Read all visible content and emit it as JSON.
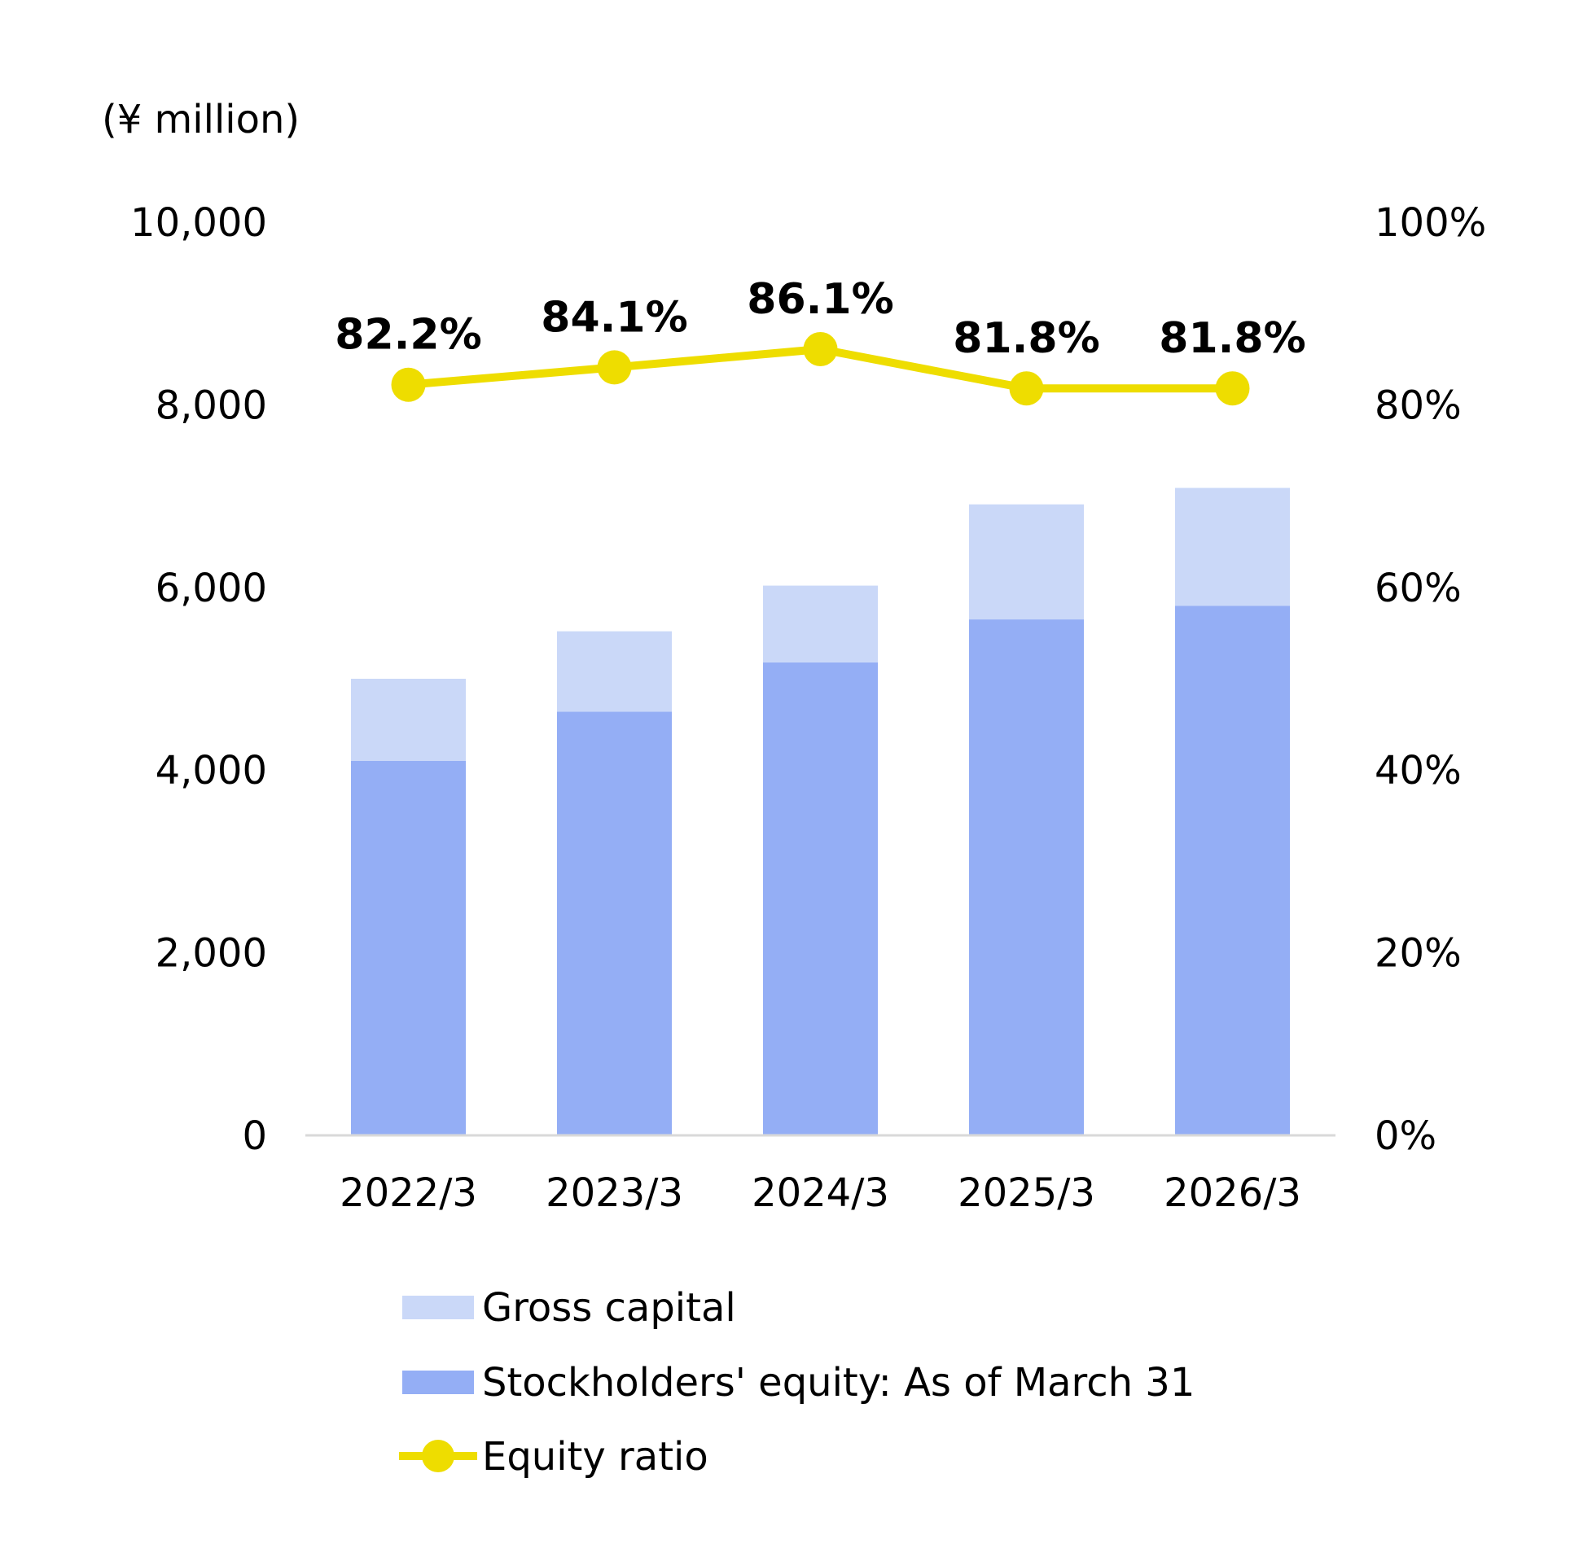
{
  "chart_data": {
    "type": "bar",
    "stacked": true,
    "unit_label": "(¥ million)",
    "categories": [
      "2022/3",
      "2023/3",
      "2024/3",
      "2025/3",
      "2026/3"
    ],
    "series": [
      {
        "name": "Stockholders' equity: As of March 31",
        "type": "bar",
        "axis": "left",
        "color": "#94aef5",
        "values": [
          4100,
          4640,
          5180,
          5650,
          5800
        ]
      },
      {
        "name": "Gross capital",
        "type": "bar",
        "axis": "left",
        "color": "#cad8f8",
        "values": [
          900,
          880,
          840,
          1260,
          1290
        ]
      },
      {
        "name": "Equity ratio",
        "type": "line",
        "axis": "right",
        "color": "#eedd00",
        "values": [
          82.2,
          84.1,
          86.1,
          81.8,
          81.8
        ],
        "labels": [
          "82.2%",
          "84.1%",
          "86.1%",
          "81.8%",
          "81.8%"
        ]
      }
    ],
    "y_left": {
      "min": 0,
      "max": 10000,
      "ticks": [
        "0",
        "2,000",
        "4,000",
        "6,000",
        "8,000",
        "10,000"
      ]
    },
    "y_right": {
      "min": 0,
      "max": 100,
      "ticks": [
        "0%",
        "20%",
        "40%",
        "60%",
        "80%",
        "100%"
      ]
    },
    "legend": {
      "position": "bottom",
      "items": [
        "Gross capital",
        "Stockholders' equity: As of March 31",
        "Equity ratio"
      ]
    },
    "grid": false
  }
}
